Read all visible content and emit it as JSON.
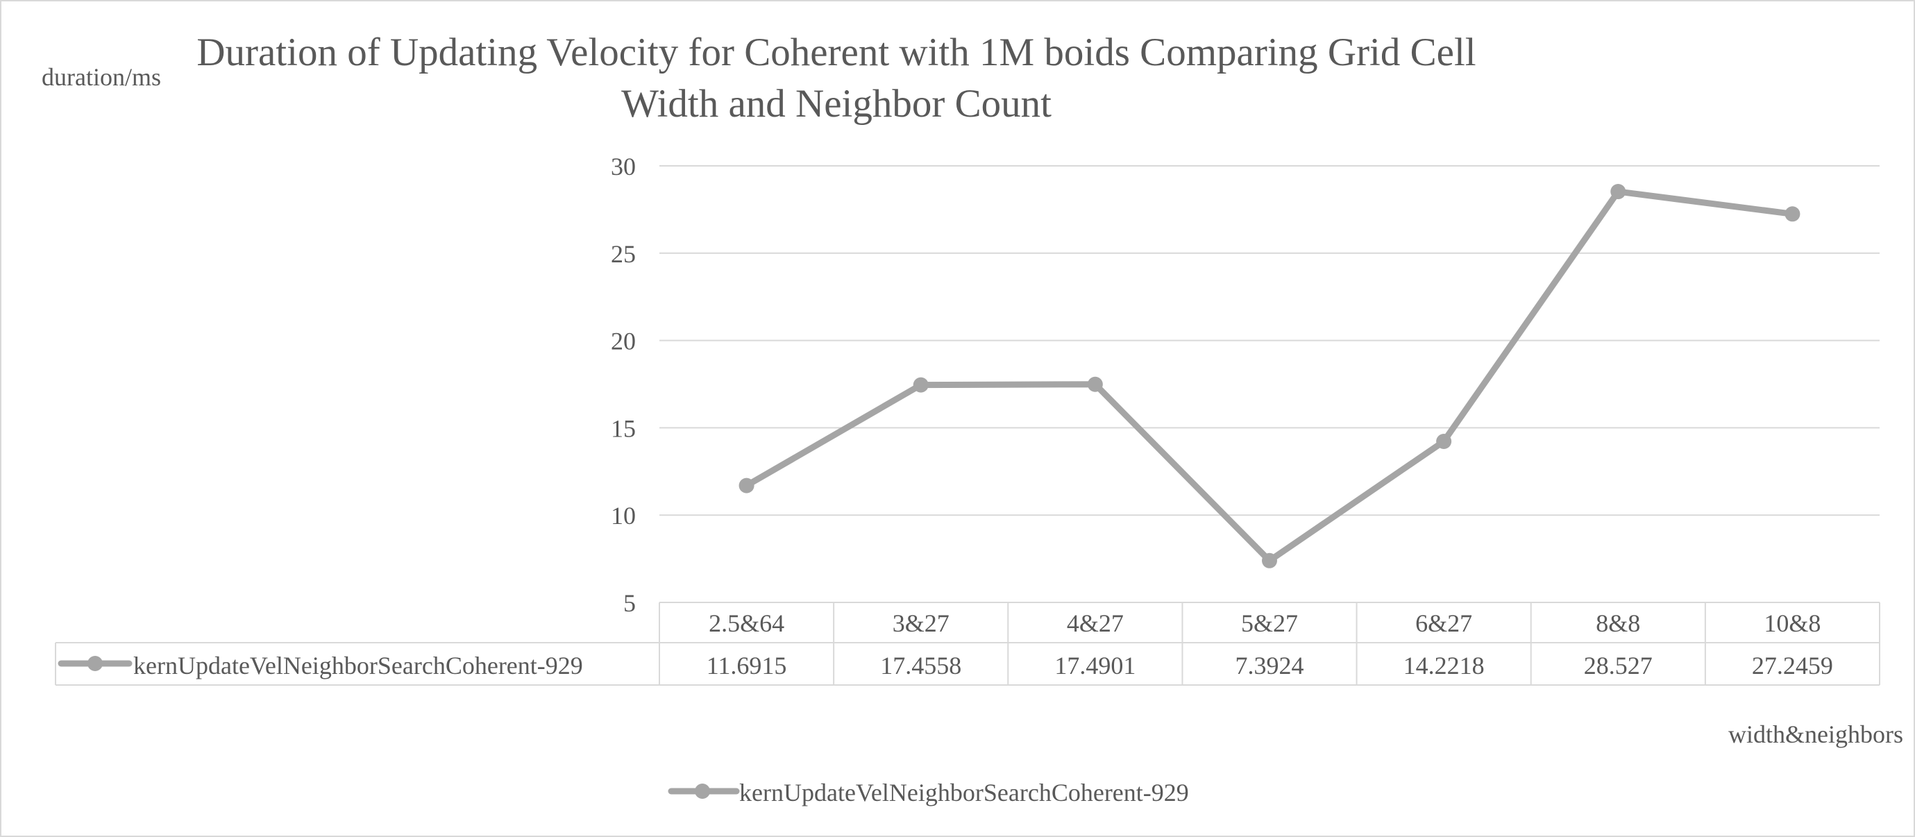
{
  "chart_data": {
    "type": "line",
    "title": "Duration of Updating Velocity for Coherent with 1M boids Comparing Grid Cell Width and Neighbor Count",
    "title_lines": [
      "Duration of Updating Velocity for Coherent with 1M boids Comparing Grid Cell",
      "Width and Neighbor Count"
    ],
    "ylabel": "duration/ms",
    "xlabel": "width&neighbors",
    "ylim": [
      5,
      30
    ],
    "yticks": [
      5,
      10,
      15,
      20,
      25,
      30
    ],
    "categories": [
      "2.5&64",
      "3&27",
      "4&27",
      "5&27",
      "6&27",
      "8&8",
      "10&8"
    ],
    "series": [
      {
        "name": "kernUpdateVelNeighborSearchCoherent-929",
        "values": [
          11.6915,
          17.4558,
          17.4901,
          7.3924,
          14.2218,
          28.527,
          27.2459
        ],
        "value_labels": [
          "11.6915",
          "17.4558",
          "17.4901",
          "7.3924",
          "14.2218",
          "28.527",
          "27.2459"
        ],
        "color": "#a5a5a5"
      }
    ],
    "grid": true,
    "data_table": true,
    "legend_position": "bottom"
  },
  "colors": {
    "series": "#a5a5a5",
    "gridline": "#d9d9d9",
    "text": "#595959"
  }
}
